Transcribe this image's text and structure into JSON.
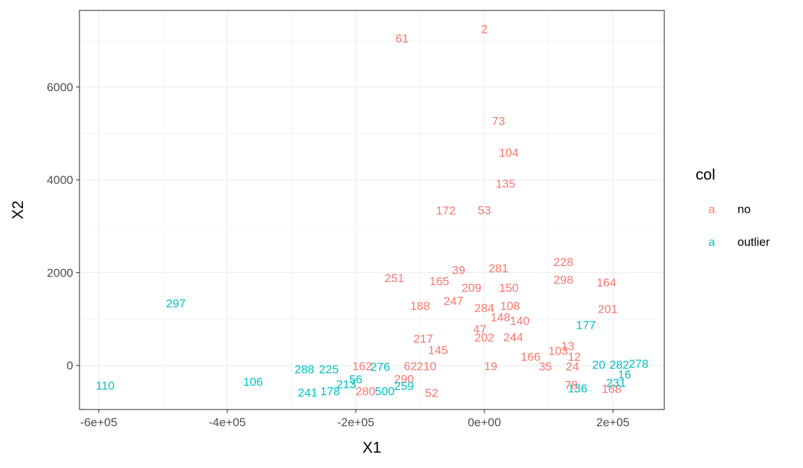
{
  "chart_data": {
    "type": "scatter",
    "title": "",
    "xlabel": "X1",
    "ylabel": "X2",
    "xlim": [
      -630000,
      280000
    ],
    "ylim": [
      -950,
      7650
    ],
    "x_ticks": [
      -600000,
      -400000,
      -200000,
      0,
      200000
    ],
    "x_tick_labels": [
      "-6e+05",
      "-4e+05",
      "-2e+05",
      "0e+00",
      "2e+05"
    ],
    "y_ticks": [
      0,
      2000,
      4000,
      6000
    ],
    "y_tick_labels": [
      "0",
      "2000",
      "4000",
      "6000"
    ],
    "grid": true,
    "legend": {
      "title": "col",
      "position": "right",
      "key_glyph": "a",
      "entries": [
        {
          "label": "no",
          "color": "#F8766D"
        },
        {
          "label": "outlier",
          "color": "#00BFC4"
        }
      ]
    },
    "series": [
      {
        "name": "no",
        "color": "#F8766D",
        "points": [
          {
            "label": "2",
            "x": 0,
            "y": 7250
          },
          {
            "label": "61",
            "x": -128000,
            "y": 7050
          },
          {
            "label": "73",
            "x": 22000,
            "y": 5270
          },
          {
            "label": "104",
            "x": 38000,
            "y": 4590
          },
          {
            "label": "135",
            "x": 33000,
            "y": 3920
          },
          {
            "label": "172",
            "x": -60000,
            "y": 3340
          },
          {
            "label": "53",
            "x": 0,
            "y": 3350
          },
          {
            "label": "228",
            "x": 123000,
            "y": 2230
          },
          {
            "label": "281",
            "x": 22000,
            "y": 2100
          },
          {
            "label": "39",
            "x": -40000,
            "y": 2060
          },
          {
            "label": "251",
            "x": -140000,
            "y": 1890
          },
          {
            "label": "165",
            "x": -70000,
            "y": 1820
          },
          {
            "label": "298",
            "x": 123000,
            "y": 1850
          },
          {
            "label": "164",
            "x": 190000,
            "y": 1790
          },
          {
            "label": "209",
            "x": -20000,
            "y": 1680
          },
          {
            "label": "150",
            "x": 38000,
            "y": 1680
          },
          {
            "label": "247",
            "x": -48000,
            "y": 1390
          },
          {
            "label": "188",
            "x": -100000,
            "y": 1290
          },
          {
            "label": "108",
            "x": 40000,
            "y": 1290
          },
          {
            "label": "201",
            "x": 192000,
            "y": 1220
          },
          {
            "label": "284",
            "x": 0,
            "y": 1240
          },
          {
            "label": "148",
            "x": 25000,
            "y": 1040
          },
          {
            "label": "140",
            "x": 55000,
            "y": 960
          },
          {
            "label": "47",
            "x": -7000,
            "y": 780
          },
          {
            "label": "217",
            "x": -95000,
            "y": 580
          },
          {
            "label": "244",
            "x": 45000,
            "y": 610
          },
          {
            "label": "202",
            "x": 0,
            "y": 600
          },
          {
            "label": "13",
            "x": 130000,
            "y": 420
          },
          {
            "label": "103",
            "x": 115000,
            "y": 320
          },
          {
            "label": "145",
            "x": -72000,
            "y": 330
          },
          {
            "label": "166",
            "x": 72000,
            "y": 190
          },
          {
            "label": "62",
            "x": -115000,
            "y": -10
          },
          {
            "label": "210",
            "x": -90000,
            "y": -10
          },
          {
            "label": "162",
            "x": -190000,
            "y": -10
          },
          {
            "label": "290",
            "x": -125000,
            "y": -290
          },
          {
            "label": "280",
            "x": -185000,
            "y": -550
          },
          {
            "label": "52",
            "x": -82000,
            "y": -590
          },
          {
            "label": "168",
            "x": 198000,
            "y": -500
          },
          {
            "label": "12",
            "x": 140000,
            "y": 190
          },
          {
            "label": "35",
            "x": 95000,
            "y": -20
          },
          {
            "label": "78",
            "x": 135000,
            "y": -420
          },
          {
            "label": "19",
            "x": 10000,
            "y": -10
          },
          {
            "label": "24",
            "x": 137000,
            "y": -20
          }
        ]
      },
      {
        "name": "outlier",
        "color": "#00BFC4",
        "points": [
          {
            "label": "297",
            "x": -480000,
            "y": 1340
          },
          {
            "label": "110",
            "x": -590000,
            "y": -430
          },
          {
            "label": "106",
            "x": -360000,
            "y": -350
          },
          {
            "label": "288",
            "x": -280000,
            "y": -80
          },
          {
            "label": "225",
            "x": -242000,
            "y": -80
          },
          {
            "label": "241",
            "x": -275000,
            "y": -580
          },
          {
            "label": "178",
            "x": -240000,
            "y": -550
          },
          {
            "label": "213",
            "x": -215000,
            "y": -400
          },
          {
            "label": "56",
            "x": -200000,
            "y": -300
          },
          {
            "label": "276",
            "x": -162000,
            "y": -30
          },
          {
            "label": "500",
            "x": -155000,
            "y": -550
          },
          {
            "label": "259",
            "x": -125000,
            "y": -440
          },
          {
            "label": "177",
            "x": 158000,
            "y": 870
          },
          {
            "label": "20",
            "x": 178000,
            "y": 20
          },
          {
            "label": "282",
            "x": 210000,
            "y": 20
          },
          {
            "label": "278",
            "x": 240000,
            "y": 40
          },
          {
            "label": "16",
            "x": 218000,
            "y": -190
          },
          {
            "label": "231",
            "x": 205000,
            "y": -370
          },
          {
            "label": "136",
            "x": 145000,
            "y": -490
          }
        ]
      }
    ]
  }
}
